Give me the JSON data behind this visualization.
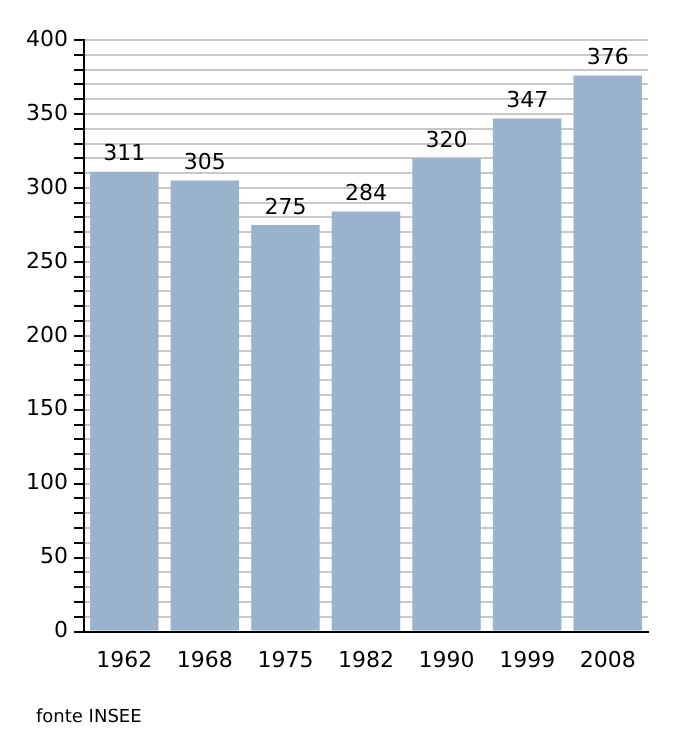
{
  "chart_data": {
    "type": "bar",
    "categories": [
      "1962",
      "1968",
      "1975",
      "1982",
      "1990",
      "1999",
      "2008"
    ],
    "values": [
      311,
      305,
      275,
      284,
      320,
      347,
      376
    ],
    "color": "#9ab3cd",
    "ylim": [
      0,
      400
    ],
    "yticks": [
      0,
      {
        "value": 10,
        "label": null
      },
      {
        "value": 20,
        "label": null
      },
      {
        "value": 30,
        "label": null
      },
      {
        "value": 40,
        "label": null
      },
      50,
      {
        "value": 60,
        "label": null
      },
      {
        "value": 70,
        "label": null
      },
      {
        "value": 80,
        "label": null
      },
      {
        "value": 90,
        "label": null
      },
      100,
      {
        "value": 110,
        "label": null
      },
      {
        "value": 120,
        "label": null
      },
      {
        "value": 130,
        "label": null
      },
      {
        "value": 140,
        "label": null
      },
      150,
      {
        "value": 160,
        "label": null
      },
      {
        "value": 170,
        "label": null
      },
      {
        "value": 180,
        "label": null
      },
      {
        "value": 190,
        "label": null
      },
      200,
      {
        "value": 210,
        "label": null
      },
      {
        "value": 220,
        "label": null
      },
      {
        "value": 230,
        "label": null
      },
      {
        "value": 240,
        "label": null
      },
      250,
      {
        "value": 260,
        "label": null
      },
      {
        "value": 270,
        "label": null
      },
      {
        "value": 280,
        "label": null
      },
      {
        "value": 290,
        "label": null
      },
      300,
      {
        "value": 310,
        "label": null
      },
      {
        "value": 320,
        "label": null
      },
      {
        "value": 330,
        "label": null
      },
      {
        "value": 340,
        "label": null
      },
      350,
      {
        "value": 360,
        "label": null
      },
      {
        "value": 370,
        "label": null
      },
      {
        "value": 380,
        "label": null
      },
      {
        "value": 390,
        "label": null
      },
      400
    ],
    "grid": "y",
    "data_labels": true,
    "annotations": [
      "fonte INSEE"
    ]
  }
}
